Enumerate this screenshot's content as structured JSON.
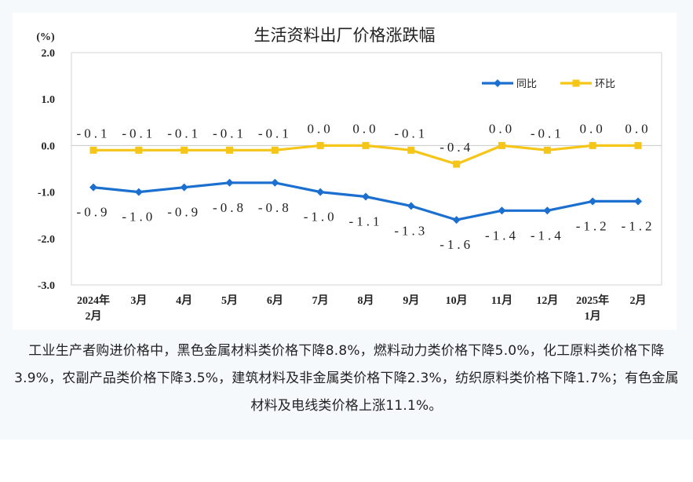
{
  "caption": "工业生产者购进价格中，黑色金属材料类价格下降8.8%，燃料动力类价格下降5.0%，化工原料类价格下降3.9%，农副产品类价格下降3.5%，建筑材料及非金属类价格下降2.3%，纺织原料类价格下降1.7%；有色金属材料及电线类价格上涨11.1%。",
  "chart_data": {
    "type": "line",
    "title": "生活资料出厂价格涨跌幅",
    "ylabel": "(%)",
    "xlabel": "",
    "ylim": [
      -3.0,
      2.0
    ],
    "yticks": [
      "2.0",
      "1.0",
      "0.0",
      "-1.0",
      "-2.0",
      "-3.0"
    ],
    "ytick_values": [
      2.0,
      1.0,
      0.0,
      -1.0,
      -2.0,
      -3.0
    ],
    "categories": [
      [
        "2024年",
        "2月"
      ],
      [
        "3月"
      ],
      [
        "4月"
      ],
      [
        "5月"
      ],
      [
        "6月"
      ],
      [
        "7月"
      ],
      [
        "8月"
      ],
      [
        "9月"
      ],
      [
        "10月"
      ],
      [
        "11月"
      ],
      [
        "12月"
      ],
      [
        "2025年",
        "1月"
      ],
      [
        "2月"
      ]
    ],
    "legend_position": "top-right",
    "series": [
      {
        "name": "同比",
        "color": "#1a6fcf",
        "values": [
          -0.9,
          -1.0,
          -0.9,
          -0.8,
          -0.8,
          -1.0,
          -1.1,
          -1.3,
          -1.6,
          -1.4,
          -1.4,
          -1.2,
          -1.2
        ],
        "labels": [
          "-0.9",
          "-1.0",
          "-0.9",
          "-0.8",
          "-0.8",
          "-1.0",
          "-1.1",
          "-1.3",
          "-1.6",
          "-1.4",
          "-1.4",
          "-1.2",
          "-1.2"
        ],
        "label_side": "below"
      },
      {
        "name": "环比",
        "color": "#f5c518",
        "values": [
          -0.1,
          -0.1,
          -0.1,
          -0.1,
          -0.1,
          0.0,
          0.0,
          -0.1,
          -0.4,
          0.0,
          -0.1,
          0.0,
          0.0
        ],
        "labels": [
          "-0.1",
          "-0.1",
          "-0.1",
          "-0.1",
          "-0.1",
          "0.0",
          "0.0",
          "-0.1",
          "-0.4",
          "0.0",
          "-0.1",
          "0.0",
          "0.0"
        ],
        "label_side": "above"
      }
    ]
  }
}
